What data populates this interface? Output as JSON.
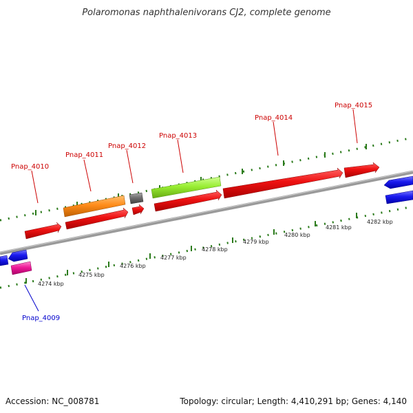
{
  "title": "Polaromonas naphthalenivorans CJ2, complete genome",
  "footer": {
    "accession": "Accession: NC_008781",
    "summary": "Topology: circular; Length: 4,410,291 bp; Genes: 4,140"
  },
  "colors": {
    "forward_label": "#cc0000",
    "reverse_label": "#0000cc",
    "tick": "#2a7a1a",
    "backbone": "#8a8a8a",
    "red": "#ee1111",
    "orange": "#ff8c1a",
    "gray": "#707070",
    "lime": "#99ee33",
    "blue": "#1a1aee",
    "magenta": "#ee1a99"
  },
  "scale_labels": [
    "4274 kbp",
    "4275 kbp",
    "4276 kbp",
    "4277 kbp",
    "4278 kbp",
    "4279 kbp",
    "4280 kbp",
    "4281 kbp",
    "4282 kbp"
  ],
  "gene_labels": {
    "forward": [
      "Pnap_4010",
      "Pnap_4011",
      "Pnap_4012",
      "Pnap_4013",
      "Pnap_4014",
      "Pnap_4015"
    ],
    "reverse": [
      "Pnap_4009"
    ]
  }
}
